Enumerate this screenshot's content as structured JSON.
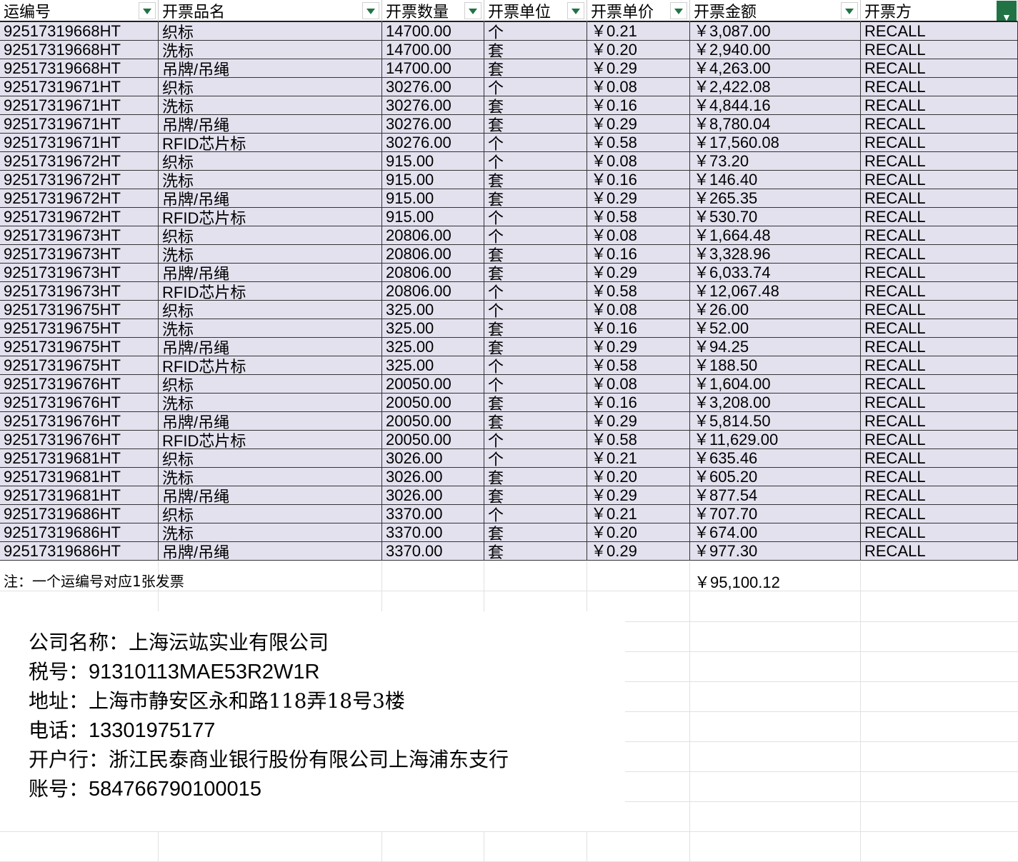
{
  "sheet": {
    "columns": [
      {
        "label": "运编号",
        "filter_active": false
      },
      {
        "label": "开票品名",
        "filter_active": false
      },
      {
        "label": "开票数量",
        "filter_active": false
      },
      {
        "label": "开票单位",
        "filter_active": false
      },
      {
        "label": "开票单价",
        "filter_active": false
      },
      {
        "label": "开票金额",
        "filter_active": false
      },
      {
        "label": "开票方",
        "filter_active": true
      }
    ],
    "rows": [
      [
        "92517319668HT",
        "织标",
        "14700.00",
        "个",
        "￥0.21",
        "￥3,087.00",
        "RECALL"
      ],
      [
        "92517319668HT",
        "洗标",
        "14700.00",
        "套",
        "￥0.20",
        "￥2,940.00",
        "RECALL"
      ],
      [
        "92517319668HT",
        "吊牌/吊绳",
        "14700.00",
        "套",
        "￥0.29",
        "￥4,263.00",
        "RECALL"
      ],
      [
        "92517319671HT",
        "织标",
        "30276.00",
        "个",
        "￥0.08",
        "￥2,422.08",
        "RECALL"
      ],
      [
        "92517319671HT",
        "洗标",
        "30276.00",
        "套",
        "￥0.16",
        "￥4,844.16",
        "RECALL"
      ],
      [
        "92517319671HT",
        "吊牌/吊绳",
        "30276.00",
        "套",
        "￥0.29",
        "￥8,780.04",
        "RECALL"
      ],
      [
        "92517319671HT",
        "RFID芯片标",
        "30276.00",
        "个",
        "￥0.58",
        "￥17,560.08",
        "RECALL"
      ],
      [
        "92517319672HT",
        "织标",
        "915.00",
        "个",
        "￥0.08",
        "￥73.20",
        "RECALL"
      ],
      [
        "92517319672HT",
        "洗标",
        "915.00",
        "套",
        "￥0.16",
        "￥146.40",
        "RECALL"
      ],
      [
        "92517319672HT",
        "吊牌/吊绳",
        "915.00",
        "套",
        "￥0.29",
        "￥265.35",
        "RECALL"
      ],
      [
        "92517319672HT",
        "RFID芯片标",
        "915.00",
        "个",
        "￥0.58",
        "￥530.70",
        "RECALL"
      ],
      [
        "92517319673HT",
        "织标",
        "20806.00",
        "个",
        "￥0.08",
        "￥1,664.48",
        "RECALL"
      ],
      [
        "92517319673HT",
        "洗标",
        "20806.00",
        "套",
        "￥0.16",
        "￥3,328.96",
        "RECALL"
      ],
      [
        "92517319673HT",
        "吊牌/吊绳",
        "20806.00",
        "套",
        "￥0.29",
        "￥6,033.74",
        "RECALL"
      ],
      [
        "92517319673HT",
        "RFID芯片标",
        "20806.00",
        "个",
        "￥0.58",
        "￥12,067.48",
        "RECALL"
      ],
      [
        "92517319675HT",
        "织标",
        "325.00",
        "个",
        "￥0.08",
        "￥26.00",
        "RECALL"
      ],
      [
        "92517319675HT",
        "洗标",
        "325.00",
        "套",
        "￥0.16",
        "￥52.00",
        "RECALL"
      ],
      [
        "92517319675HT",
        "吊牌/吊绳",
        "325.00",
        "套",
        "￥0.29",
        "￥94.25",
        "RECALL"
      ],
      [
        "92517319675HT",
        "RFID芯片标",
        "325.00",
        "个",
        "￥0.58",
        "￥188.50",
        "RECALL"
      ],
      [
        "92517319676HT",
        "织标",
        "20050.00",
        "个",
        "￥0.08",
        "￥1,604.00",
        "RECALL"
      ],
      [
        "92517319676HT",
        "洗标",
        "20050.00",
        "套",
        "￥0.16",
        "￥3,208.00",
        "RECALL"
      ],
      [
        "92517319676HT",
        "吊牌/吊绳",
        "20050.00",
        "套",
        "￥0.29",
        "￥5,814.50",
        "RECALL"
      ],
      [
        "92517319676HT",
        "RFID芯片标",
        "20050.00",
        "个",
        "￥0.58",
        "￥11,629.00",
        "RECALL"
      ],
      [
        "92517319681HT",
        "织标",
        "3026.00",
        "个",
        "￥0.21",
        "￥635.46",
        "RECALL"
      ],
      [
        "92517319681HT",
        "洗标",
        "3026.00",
        "套",
        "￥0.20",
        "￥605.20",
        "RECALL"
      ],
      [
        "92517319681HT",
        "吊牌/吊绳",
        "3026.00",
        "套",
        "￥0.29",
        "￥877.54",
        "RECALL"
      ],
      [
        "92517319686HT",
        "织标",
        "3370.00",
        "个",
        "￥0.21",
        "￥707.70",
        "RECALL"
      ],
      [
        "92517319686HT",
        "洗标",
        "3370.00",
        "套",
        "￥0.20",
        "￥674.00",
        "RECALL"
      ],
      [
        "92517319686HT",
        "吊牌/吊绳",
        "3370.00",
        "套",
        "￥0.29",
        "￥977.30",
        "RECALL"
      ]
    ],
    "note": "注：一个运编号对应1张发票",
    "total": "￥95,100.12",
    "row_color": "#e4e1ef",
    "filter_color": "#217346"
  },
  "company": {
    "name_label": "公司名称：",
    "name": "上海沄竑实业有限公司",
    "tax_label": "税号：",
    "tax": "91310113MAE53R2W1R",
    "address_label": "地址：",
    "address": "上海市静安区永和路118弄18号3楼",
    "phone_label": "电话：",
    "phone": "13301975177",
    "bank_label": "开户行：",
    "bank": "浙江民泰商业银行股份有限公司上海浦东支行",
    "account_label": "账号：",
    "account": "584766790100015"
  }
}
